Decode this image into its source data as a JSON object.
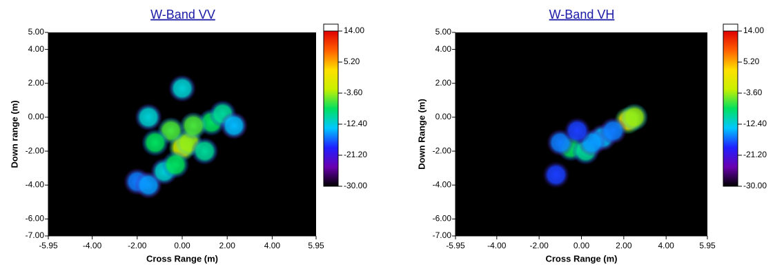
{
  "chart_data": [
    {
      "type": "heatmap",
      "title": "W-Band VV",
      "xlabel": "Cross Range (m)",
      "ylabel": "Down range (m)",
      "xlim": [
        -5.95,
        5.95
      ],
      "ylim": [
        -7,
        5
      ],
      "xticks": [
        {
          "value": -5.95,
          "label": "-5.95"
        },
        {
          "value": -4,
          "label": "-4.00"
        },
        {
          "value": -2,
          "label": "-2.00"
        },
        {
          "value": 0,
          "label": "0.00"
        },
        {
          "value": 2,
          "label": "2.00"
        },
        {
          "value": 4,
          "label": "4.00"
        },
        {
          "value": 5.95,
          "label": "5.95"
        }
      ],
      "yticks": [
        {
          "value": 5,
          "label": "5.00"
        },
        {
          "value": 4,
          "label": "4.00"
        },
        {
          "value": 2,
          "label": "2.00"
        },
        {
          "value": 0,
          "label": "0.00"
        },
        {
          "value": -2,
          "label": "-2.00"
        },
        {
          "value": -4,
          "label": "-4.00"
        },
        {
          "value": -6,
          "label": "-6.00"
        },
        {
          "value": -7,
          "label": "-7.00"
        }
      ],
      "clim": [
        -30,
        14
      ],
      "cticks": [
        {
          "value": 14,
          "label": "14.00"
        },
        {
          "value": 5.2,
          "label": "5.20"
        },
        {
          "value": -3.6,
          "label": "-3.60"
        },
        {
          "value": -12.4,
          "label": "-12.40"
        },
        {
          "value": -21.2,
          "label": "-21.20"
        },
        {
          "value": -30,
          "label": "-30.00"
        }
      ],
      "colors": [
        "#000000",
        "#6a00b0",
        "#2020ff",
        "#00c8ff",
        "#00e060",
        "#c8f000",
        "#ffe000",
        "#ff6000",
        "#e00000"
      ],
      "points": [
        {
          "x": 0,
          "y": 1.7,
          "value": -12
        },
        {
          "x": -1.5,
          "y": 0,
          "value": -12
        },
        {
          "x": -0.5,
          "y": -0.8,
          "value": -6
        },
        {
          "x": 0,
          "y": -1.8,
          "value": -2
        },
        {
          "x": 0.3,
          "y": -1.5,
          "value": -4
        },
        {
          "x": 1.3,
          "y": -0.3,
          "value": -8
        },
        {
          "x": 1.8,
          "y": 0.2,
          "value": -10
        },
        {
          "x": 2.3,
          "y": -0.5,
          "value": -14
        },
        {
          "x": -1.2,
          "y": -1.5,
          "value": -8
        },
        {
          "x": -2,
          "y": -3.8,
          "value": -16
        },
        {
          "x": -1.5,
          "y": -4,
          "value": -15
        },
        {
          "x": -0.8,
          "y": -3.2,
          "value": -12
        },
        {
          "x": 0.5,
          "y": -0.5,
          "value": -6
        },
        {
          "x": 1,
          "y": -2,
          "value": -10
        },
        {
          "x": -0.3,
          "y": -2.8,
          "value": -8
        }
      ]
    },
    {
      "type": "heatmap",
      "title": "W-Band VH",
      "xlabel": "Cross Range (m)",
      "ylabel": "Down Range (m)",
      "xlim": [
        -5.95,
        5.95
      ],
      "ylim": [
        -7,
        5
      ],
      "xticks": [
        {
          "value": -5.95,
          "label": "-5.95"
        },
        {
          "value": -4,
          "label": "-4.00"
        },
        {
          "value": -2,
          "label": "-2.00"
        },
        {
          "value": 0,
          "label": "0.00"
        },
        {
          "value": 2,
          "label": "2.00"
        },
        {
          "value": 4,
          "label": "4.00"
        },
        {
          "value": 5.95,
          "label": "5.95"
        }
      ],
      "yticks": [
        {
          "value": 5,
          "label": "5.00"
        },
        {
          "value": 4,
          "label": "4.00"
        },
        {
          "value": 2,
          "label": "2.00"
        },
        {
          "value": 0,
          "label": "0.00"
        },
        {
          "value": -2,
          "label": "-2.00"
        },
        {
          "value": -4,
          "label": "-4.00"
        },
        {
          "value": -6,
          "label": "-6.00"
        },
        {
          "value": -7,
          "label": "-7.00"
        }
      ],
      "clim": [
        -30,
        14
      ],
      "cticks": [
        {
          "value": 14,
          "label": "14.00"
        },
        {
          "value": 5.2,
          "label": "5.20"
        },
        {
          "value": -3.6,
          "label": "-3.60"
        },
        {
          "value": -12.4,
          "label": "-12.40"
        },
        {
          "value": -21.2,
          "label": "-21.20"
        },
        {
          "value": -30,
          "label": "-30.00"
        }
      ],
      "colors": [
        "#000000",
        "#6a00b0",
        "#2020ff",
        "#00c8ff",
        "#00e060",
        "#c8f000",
        "#ffe000",
        "#ff6000",
        "#e00000"
      ],
      "points": [
        {
          "x": 2.2,
          "y": -0.2,
          "value": 0
        },
        {
          "x": 2.5,
          "y": 0,
          "value": -4
        },
        {
          "x": -0.5,
          "y": -1.8,
          "value": -8
        },
        {
          "x": 0.2,
          "y": -2,
          "value": -10
        },
        {
          "x": -1.2,
          "y": -3.4,
          "value": -18
        },
        {
          "x": 1,
          "y": -1.2,
          "value": -14
        },
        {
          "x": 1.5,
          "y": -0.8,
          "value": -16
        },
        {
          "x": -1,
          "y": -1.5,
          "value": -16
        },
        {
          "x": 0.5,
          "y": -1.5,
          "value": -15
        },
        {
          "x": -0.2,
          "y": -0.8,
          "value": -18
        }
      ]
    }
  ]
}
